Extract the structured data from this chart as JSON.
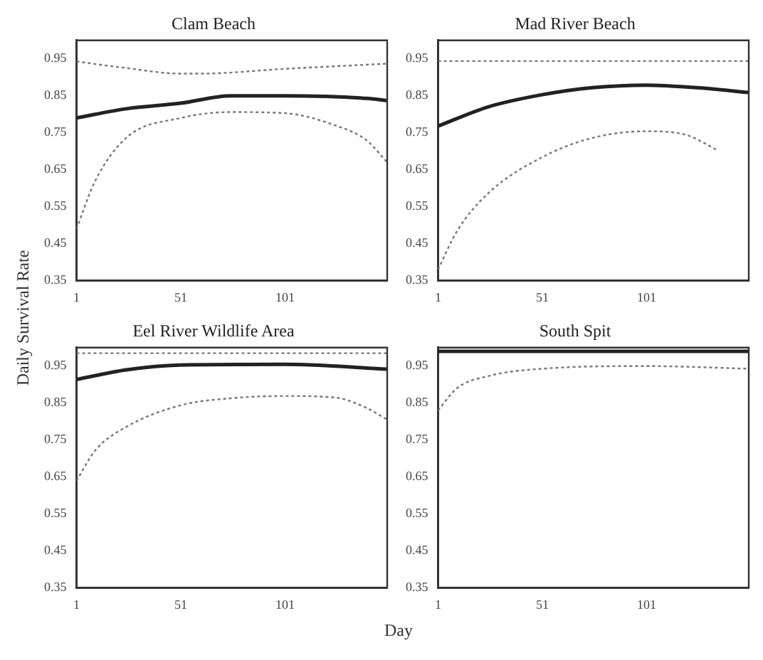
{
  "chart_data": [
    {
      "type": "line",
      "title": "Clam Beach",
      "ylabel": "Daily Survival Rate",
      "xlim": [
        1,
        150
      ],
      "xticks": [
        1,
        51,
        101
      ],
      "ylim": [
        0.35,
        1.0
      ],
      "yticks": [
        0.35,
        0.45,
        0.55,
        0.65,
        0.75,
        0.85,
        0.95
      ],
      "grid": false,
      "legend": false,
      "marker": "none",
      "series": [
        {
          "color": "#777777",
          "line_style": "dotted",
          "x": [
            1,
            25,
            51,
            60,
            101,
            125,
            150
          ],
          "values": [
            0.943,
            0.925,
            0.91,
            0.91,
            0.923,
            0.93,
            0.937
          ]
        },
        {
          "color": "#222222",
          "line_style": "solid",
          "x": [
            1,
            25,
            51,
            75,
            101,
            140,
            150
          ],
          "values": [
            0.79,
            0.815,
            0.83,
            0.85,
            0.85,
            0.843,
            0.837
          ]
        },
        {
          "color": "#777777",
          "line_style": "dotted",
          "x": [
            1,
            10,
            25,
            51,
            75,
            101,
            125,
            140,
            150
          ],
          "values": [
            0.49,
            0.62,
            0.737,
            0.79,
            0.806,
            0.803,
            0.77,
            0.73,
            0.67
          ]
        }
      ]
    },
    {
      "type": "line",
      "title": "Mad River Beach",
      "xlim": [
        1,
        150
      ],
      "xticks": [
        1,
        51,
        101
      ],
      "ylim": [
        0.35,
        1.0
      ],
      "yticks": [
        0.35,
        0.45,
        0.55,
        0.65,
        0.75,
        0.85,
        0.95
      ],
      "grid": false,
      "legend": false,
      "marker": "none",
      "series": [
        {
          "color": "#777777",
          "line_style": "dotted",
          "x": [
            1,
            75,
            150
          ],
          "values": [
            0.944,
            0.944,
            0.944
          ]
        },
        {
          "color": "#222222",
          "line_style": "solid",
          "x": [
            1,
            25,
            51,
            75,
            101,
            125,
            150
          ],
          "values": [
            0.768,
            0.82,
            0.853,
            0.872,
            0.879,
            0.872,
            0.859
          ]
        },
        {
          "color": "#777777",
          "line_style": "dotted",
          "x": [
            1,
            10,
            25,
            51,
            75,
            101,
            120,
            135
          ],
          "values": [
            0.38,
            0.483,
            0.586,
            0.684,
            0.736,
            0.754,
            0.744,
            0.703
          ]
        }
      ]
    },
    {
      "type": "line",
      "title": "Eel River Wildlife Area",
      "xlim": [
        1,
        150
      ],
      "xticks": [
        1,
        51,
        101
      ],
      "ylim": [
        0.35,
        1.0
      ],
      "yticks": [
        0.35,
        0.45,
        0.55,
        0.65,
        0.75,
        0.85,
        0.95
      ],
      "grid": false,
      "legend": false,
      "marker": "none",
      "series": [
        {
          "color": "#777777",
          "line_style": "dotted",
          "x": [
            1,
            75,
            150
          ],
          "values": [
            0.985,
            0.985,
            0.985
          ]
        },
        {
          "color": "#222222",
          "line_style": "solid",
          "x": [
            1,
            25,
            51,
            101,
            150
          ],
          "values": [
            0.914,
            0.94,
            0.953,
            0.955,
            0.942
          ]
        },
        {
          "color": "#777777",
          "line_style": "dotted",
          "x": [
            1,
            10,
            25,
            51,
            75,
            101,
            125,
            140,
            150
          ],
          "values": [
            0.64,
            0.722,
            0.786,
            0.844,
            0.863,
            0.869,
            0.865,
            0.837,
            0.805
          ]
        }
      ]
    },
    {
      "type": "line",
      "title": "South Spit",
      "xlabel": "Day",
      "xlim": [
        1,
        150
      ],
      "xticks": [
        1,
        51,
        101
      ],
      "ylim": [
        0.35,
        1.0
      ],
      "yticks": [
        0.35,
        0.45,
        0.55,
        0.65,
        0.75,
        0.85,
        0.95
      ],
      "grid": false,
      "legend": false,
      "marker": "none",
      "series": [
        {
          "color": "#222222",
          "line_style": "solid",
          "x": [
            1,
            75,
            150
          ],
          "values": [
            0.99,
            0.99,
            0.99
          ]
        },
        {
          "color": "#777777",
          "line_style": "dotted",
          "x": [
            1,
            10,
            25,
            51,
            101,
            150
          ],
          "values": [
            0.83,
            0.89,
            0.923,
            0.943,
            0.95,
            0.943
          ]
        }
      ]
    }
  ]
}
